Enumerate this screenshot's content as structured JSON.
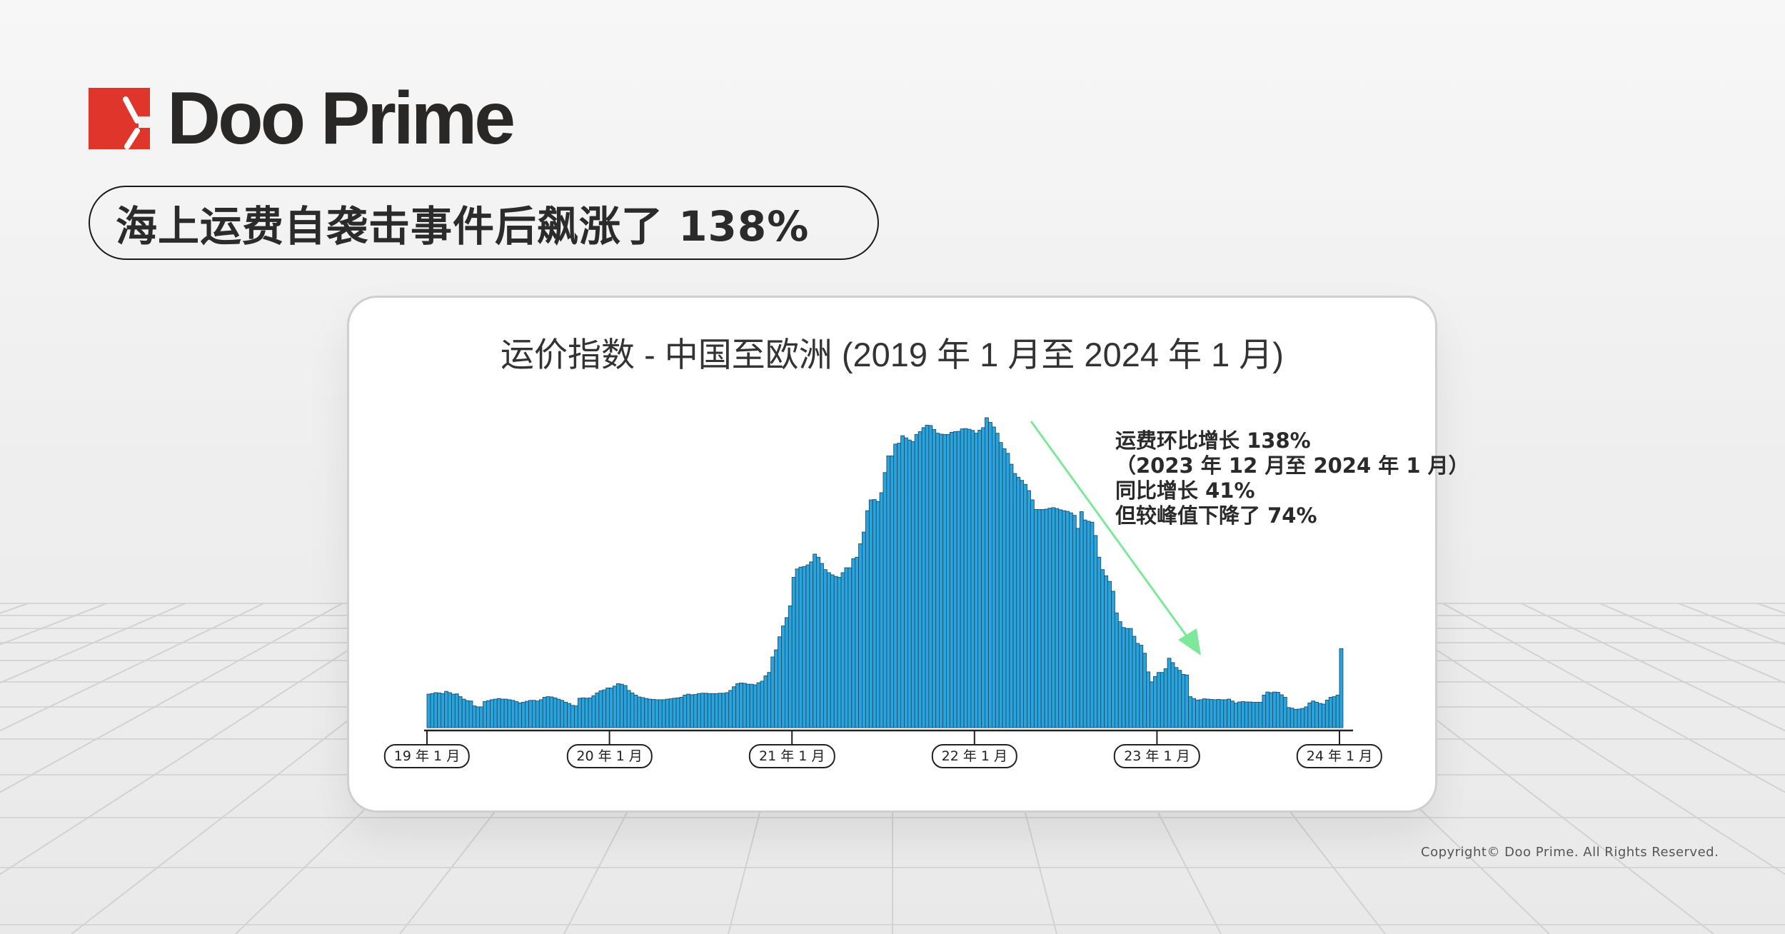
{
  "brand": {
    "logo_text": "Doo Prime",
    "red": "#e0352b"
  },
  "headline": "海上运费自袭击事件后飙涨了 138%",
  "annotation": {
    "lines": [
      "运费环比增长 138%",
      "（2023 年 12 月至 2024 年 1 月）",
      "同比增长 41%",
      "但较峰值下降了 74%"
    ],
    "arrow_color": "#7de89a"
  },
  "copyright": "Copyright© Doo Prime. All Rights Reserved.",
  "chart_data": {
    "type": "bar",
    "title": "运价指数 - 中国至欧洲 (2019 年 1 月至 2024 年 1 月)",
    "xlabel": "",
    "ylabel": "",
    "frequency": "weekly",
    "x_start": "2019-01",
    "x_end": "2024-01",
    "x_ticks": [
      "19 年 1 月",
      "20 年 1 月",
      "21 年 1 月",
      "22 年 1 月",
      "23 年 1 月",
      "24 年 1 月"
    ],
    "y_axis_shown": false,
    "ylim": [
      0,
      100
    ],
    "grid": false,
    "bar_color": "#2aa4dd",
    "bar_edge_color": "#1b4f6e",
    "values": [
      10.8,
      11.0,
      11.3,
      11.2,
      11.0,
      11.7,
      11.3,
      10.8,
      10.9,
      10.0,
      9.2,
      8.7,
      8.6,
      7.0,
      6.7,
      6.7,
      8.4,
      8.7,
      9.0,
      9.2,
      9.4,
      9.2,
      9.2,
      9.0,
      8.8,
      8.4,
      8.0,
      8.2,
      8.5,
      8.8,
      8.8,
      8.6,
      9.0,
      9.8,
      10.0,
      9.9,
      9.6,
      9.2,
      8.8,
      8.2,
      7.8,
      7.2,
      7.0,
      9.5,
      9.6,
      9.5,
      9.6,
      10.3,
      11.2,
      11.9,
      12.2,
      12.8,
      12.8,
      13.4,
      14.2,
      14.0,
      13.6,
      12.0,
      11.2,
      10.5,
      9.9,
      9.7,
      9.4,
      9.2,
      9.1,
      9.0,
      9.0,
      9.0,
      9.2,
      9.3,
      9.5,
      9.6,
      9.8,
      10.5,
      10.8,
      10.6,
      10.7,
      11.0,
      11.1,
      11.1,
      11.0,
      11.0,
      11.0,
      11.1,
      11.1,
      11.3,
      12.0,
      13.2,
      14.2,
      14.4,
      14.3,
      14.0,
      14.0,
      13.8,
      14.5,
      15.0,
      16.7,
      17.8,
      22.8,
      25.1,
      29.3,
      32.8,
      35.5,
      39.3,
      48.5,
      51.2,
      51.8,
      52.0,
      52.5,
      53.5,
      56.0,
      55.0,
      53.0,
      51.0,
      50.0,
      49.3,
      48.8,
      48.5,
      50.0,
      51.6,
      51.6,
      54.5,
      55.0,
      59.3,
      63.1,
      70.0,
      73.5,
      73.6,
      73.0,
      75.8,
      82.3,
      87.7,
      87.7,
      91.5,
      91.8,
      94.2,
      93.5,
      92.8,
      92.3,
      94.6,
      95.5,
      96.8,
      97.6,
      97.5,
      96.2,
      95.0,
      94.7,
      94.6,
      94.6,
      95.3,
      95.5,
      95.6,
      96.4,
      96.5,
      96.3,
      95.9,
      95.0,
      96.0,
      96.8,
      100.0,
      98.5,
      97.0,
      95.0,
      92.0,
      90.0,
      88.5,
      85.0,
      82.0,
      80.8,
      79.8,
      78.5,
      76.5,
      73.5,
      70.4,
      70.4,
      70.4,
      70.5,
      70.8,
      71.0,
      70.7,
      70.3,
      70.0,
      69.8,
      69.3,
      68.5,
      64.3,
      69.7,
      67.0,
      66.6,
      66.3,
      62.0,
      55.0,
      51.0,
      49.0,
      47.2,
      44.0,
      37.0,
      34.2,
      32.3,
      32.0,
      32.0,
      29.5,
      27.2,
      26.6,
      24.0,
      18.0,
      14.8,
      16.5,
      17.8,
      17.8,
      19.0,
      22.4,
      21.0,
      19.4,
      18.5,
      17.2,
      17.0,
      10.0,
      9.4,
      8.9,
      9.0,
      9.3,
      9.2,
      9.1,
      9.0,
      9.1,
      9.0,
      9.0,
      9.2,
      8.6,
      7.9,
      8.3,
      8.4,
      8.3,
      8.3,
      8.2,
      8.2,
      8.2,
      10.5,
      11.5,
      11.3,
      11.5,
      11.4,
      10.6,
      9.8,
      6.5,
      6.3,
      5.9,
      6.0,
      6.2,
      6.7,
      8.0,
      8.6,
      8.2,
      7.8,
      7.6,
      8.9,
      9.8,
      10.0,
      10.5,
      25.5
    ]
  }
}
